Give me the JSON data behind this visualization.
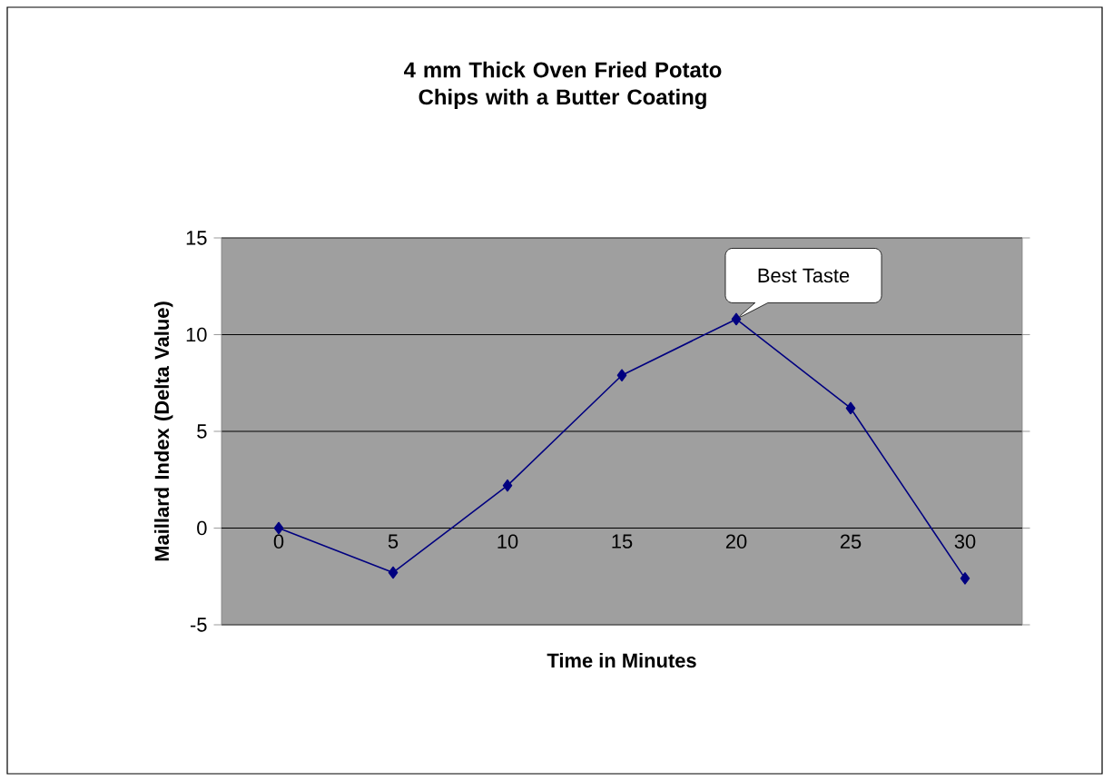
{
  "chart_data": {
    "type": "line",
    "title": "4 mm Thick Oven Fried Potato Chips with a Butter Coating",
    "xlabel": "Time in Minutes",
    "ylabel": "Maillard Index (Delta Value)",
    "categories": [
      "0",
      "5",
      "10",
      "15",
      "20",
      "25",
      "30"
    ],
    "series": [
      {
        "color": "#000080",
        "values": [
          0,
          -2.3,
          2.2,
          7.9,
          10.8,
          6.2,
          -2.6
        ]
      }
    ],
    "ylim": [
      -5,
      15
    ],
    "yticks": [
      -5,
      0,
      5,
      10,
      15
    ],
    "grid": "y",
    "marker": "diamond",
    "line_style": "solid",
    "annotations": [
      {
        "text": "Best Taste",
        "x": "20",
        "y": 10.8
      }
    ]
  }
}
